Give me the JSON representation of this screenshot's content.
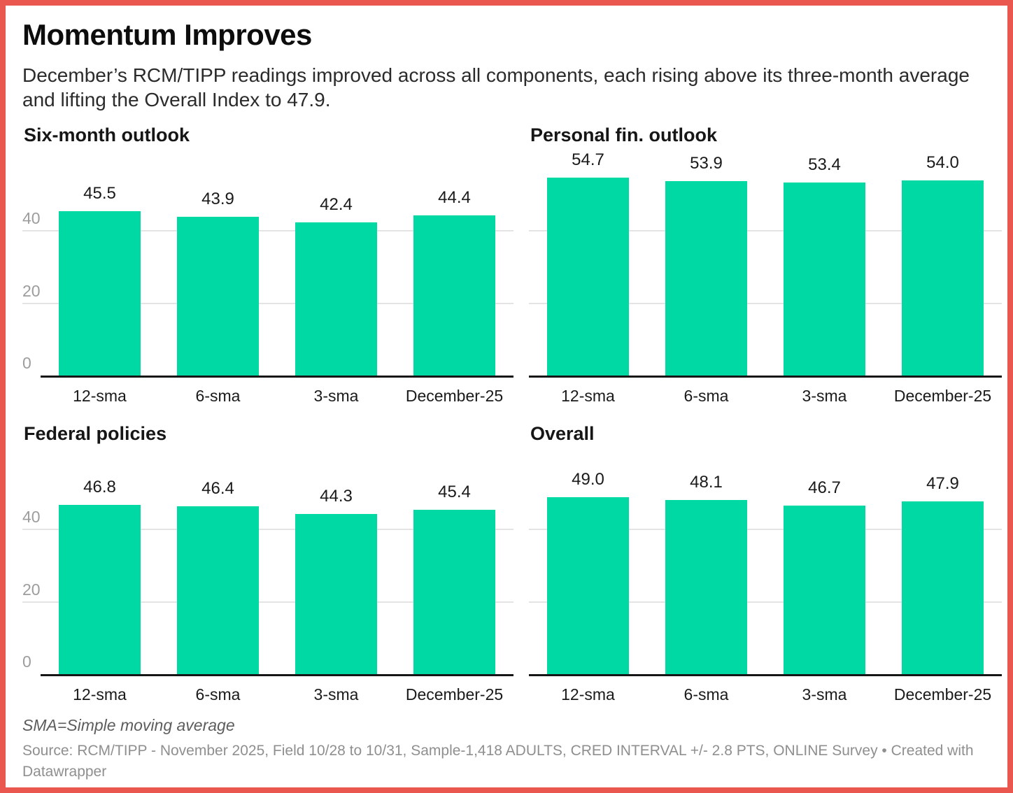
{
  "title": "Momentum Improves",
  "description": "December’s RCM/TIPP readings improved across all components, each rising above its three-month average and lifting the Overall Index to 47.9.",
  "footnote": "SMA=Simple moving average",
  "source": "Source: RCM/TIPP - November 2025, Field 10/28 to 10/31, Sample-1,418 ADULTS, CRED INTERVAL +/- 2.8 PTS, ONLINE Survey • Created with Datawrapper",
  "colors": {
    "frame_border": "#e9574e",
    "bar": "#00d9a3",
    "gridline": "#e4e4e4",
    "tick_label": "#9d9d9d",
    "axis_line": "#161616",
    "text": "#1a1a1a"
  },
  "axis": {
    "ymax": 60,
    "yticks": [
      0,
      20,
      40
    ],
    "ytick_labels": [
      "0",
      "20",
      "40"
    ],
    "grid": true
  },
  "chart_data": [
    {
      "type": "bar",
      "title": "Six-month outlook",
      "categories": [
        "12-sma",
        "6-sma",
        "3-sma",
        "December-25"
      ],
      "values": [
        45.5,
        43.9,
        42.4,
        44.4
      ],
      "value_labels": [
        "45.5",
        "43.9",
        "42.4",
        "44.4"
      ],
      "ylim": [
        0,
        60
      ],
      "show_y_labels": true,
      "legend": "none"
    },
    {
      "type": "bar",
      "title": "Personal fin. outlook",
      "categories": [
        "12-sma",
        "6-sma",
        "3-sma",
        "December-25"
      ],
      "values": [
        54.7,
        53.9,
        53.4,
        54.0
      ],
      "value_labels": [
        "54.7",
        "53.9",
        "53.4",
        "54.0"
      ],
      "ylim": [
        0,
        60
      ],
      "show_y_labels": false,
      "legend": "none"
    },
    {
      "type": "bar",
      "title": "Federal policies",
      "categories": [
        "12-sma",
        "6-sma",
        "3-sma",
        "December-25"
      ],
      "values": [
        46.8,
        46.4,
        44.3,
        45.4
      ],
      "value_labels": [
        "46.8",
        "46.4",
        "44.3",
        "45.4"
      ],
      "ylim": [
        0,
        60
      ],
      "show_y_labels": true,
      "legend": "none"
    },
    {
      "type": "bar",
      "title": "Overall",
      "categories": [
        "12-sma",
        "6-sma",
        "3-sma",
        "December-25"
      ],
      "values": [
        49.0,
        48.1,
        46.7,
        47.9
      ],
      "value_labels": [
        "49.0",
        "48.1",
        "46.7",
        "47.9"
      ],
      "ylim": [
        0,
        60
      ],
      "show_y_labels": false,
      "legend": "none"
    }
  ]
}
